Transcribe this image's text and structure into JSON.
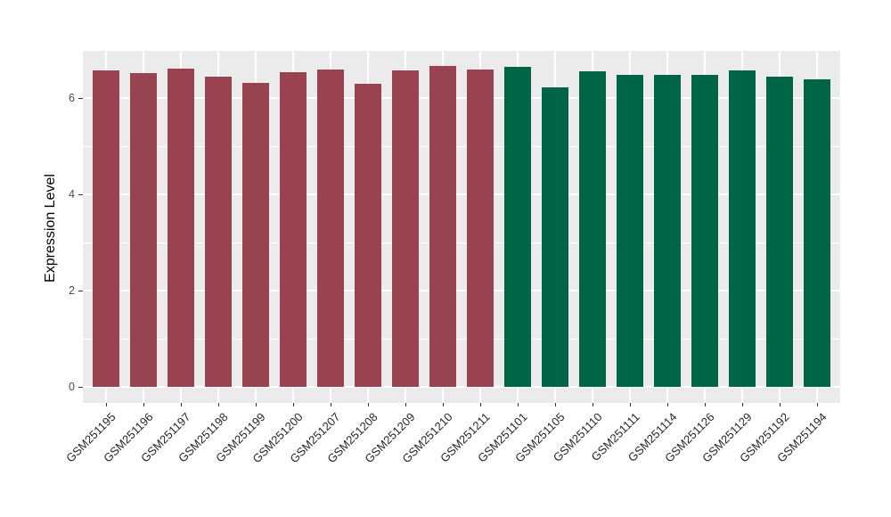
{
  "chart_data": {
    "type": "bar",
    "title": "",
    "xlabel": "",
    "ylabel": "Expression Level",
    "categories": [
      "GSM251195",
      "GSM251196",
      "GSM251197",
      "GSM251198",
      "GSM251199",
      "GSM251200",
      "GSM251207",
      "GSM251208",
      "GSM251209",
      "GSM251210",
      "GSM251211",
      "GSM251101",
      "GSM251105",
      "GSM251110",
      "GSM251111",
      "GSM251114",
      "GSM251126",
      "GSM251129",
      "GSM251192",
      "GSM251194"
    ],
    "values": [
      6.57,
      6.52,
      6.61,
      6.44,
      6.32,
      6.53,
      6.6,
      6.3,
      6.58,
      6.67,
      6.6,
      6.64,
      6.23,
      6.56,
      6.48,
      6.48,
      6.48,
      6.57,
      6.44,
      6.39
    ],
    "groups": [
      "group1",
      "group1",
      "group1",
      "group1",
      "group1",
      "group1",
      "group1",
      "group1",
      "group1",
      "group1",
      "group1",
      "group2",
      "group2",
      "group2",
      "group2",
      "group2",
      "group2",
      "group2",
      "group2",
      "group2"
    ],
    "group_colors": {
      "group1": "#9A4350",
      "group2": "#006546"
    },
    "yticks": [
      0,
      2,
      4,
      6
    ],
    "minor_yticks": [
      1,
      3,
      5,
      7
    ],
    "ylim": [
      -0.33,
      7.0
    ],
    "grid": true,
    "legend_position": "none",
    "panel_background": "#EBEBEB",
    "gridline_color": "#FFFFFF",
    "tick_color": "#333333",
    "axis_text_color": "#4D4D4D",
    "axis_title_color": "#000000"
  }
}
